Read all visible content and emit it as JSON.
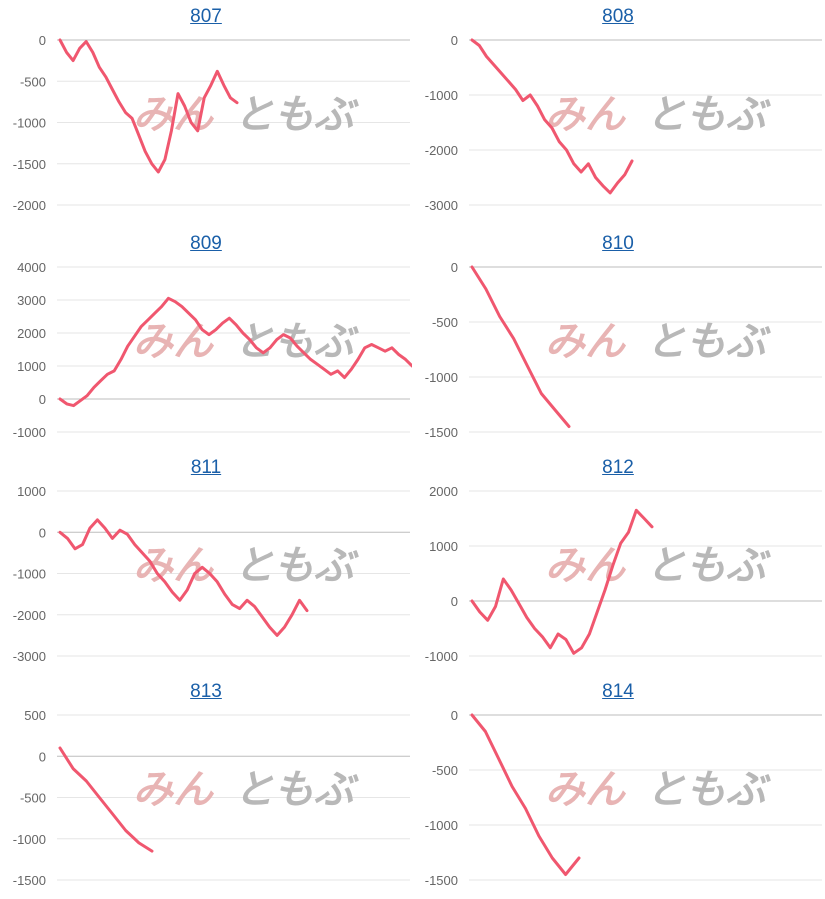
{
  "colors": {
    "line": "#f0576f",
    "grid": "#e6e6e6",
    "axis": "#bdbdbd",
    "link": "#1a5fa8",
    "watermark_red": "#e8b4b4",
    "watermark_gray": "#b8b8b8"
  },
  "watermark": {
    "part1": "みん",
    "part2": "ともぶ"
  },
  "chart_data": [
    {
      "type": "line",
      "title": "807",
      "ylim": [
        -2000,
        0
      ],
      "yticks": [
        0,
        -500,
        -1000,
        -1500,
        -2000
      ],
      "series": [
        {
          "values": [
            0,
            -150,
            -250,
            -100,
            -20,
            -150,
            -330,
            -450,
            -600,
            -750,
            -880,
            -950,
            -1150,
            -1350,
            -1500,
            -1600,
            -1450,
            -1100,
            -650,
            -800,
            -1000,
            -1100,
            -700,
            -550,
            -380,
            -550,
            -700,
            -760
          ]
        }
      ]
    },
    {
      "type": "line",
      "title": "808",
      "ylim": [
        -3000,
        0
      ],
      "yticks": [
        0,
        -1000,
        -2000,
        -3000
      ],
      "series": [
        {
          "values": [
            0,
            -100,
            -300,
            -450,
            -600,
            -750,
            -900,
            -1100,
            -1000,
            -1200,
            -1450,
            -1600,
            -1850,
            -2000,
            -2250,
            -2400,
            -2250,
            -2500,
            -2650,
            -2780,
            -2600,
            -2450,
            -2200
          ]
        }
      ]
    },
    {
      "type": "line",
      "title": "809",
      "ylim": [
        -1000,
        4000
      ],
      "yticks": [
        4000,
        3000,
        2000,
        1000,
        0,
        -1000
      ],
      "series": [
        {
          "values": [
            0,
            -150,
            -200,
            -50,
            100,
            350,
            550,
            750,
            850,
            1200,
            1600,
            1900,
            2200,
            2400,
            2600,
            2800,
            3050,
            2950,
            2800,
            2600,
            2400,
            2100,
            1950,
            2100,
            2300,
            2450,
            2250,
            2000,
            1800,
            1550,
            1400,
            1550,
            1800,
            1950,
            1850,
            1600,
            1400,
            1200,
            1050,
            900,
            750,
            850,
            650,
            900,
            1200,
            1550,
            1650,
            1550,
            1450,
            1550,
            1350,
            1200,
            1000,
            1150
          ]
        }
      ]
    },
    {
      "type": "line",
      "title": "810",
      "ylim": [
        -1500,
        0
      ],
      "yticks": [
        0,
        -500,
        -1000,
        -1500
      ],
      "series": [
        {
          "values": [
            0,
            -200,
            -450,
            -650,
            -900,
            -1150,
            -1300,
            -1450
          ]
        }
      ]
    },
    {
      "type": "line",
      "title": "811",
      "ylim": [
        -3000,
        1000
      ],
      "yticks": [
        1000,
        0,
        -1000,
        -2000,
        -3000
      ],
      "series": [
        {
          "values": [
            0,
            -150,
            -400,
            -300,
            100,
            300,
            100,
            -150,
            50,
            -50,
            -300,
            -500,
            -700,
            -1000,
            -1200,
            -1450,
            -1650,
            -1400,
            -1000,
            -850,
            -1000,
            -1200,
            -1500,
            -1750,
            -1850,
            -1650,
            -1800,
            -2050,
            -2300,
            -2500,
            -2300,
            -2000,
            -1650,
            -1900
          ]
        }
      ]
    },
    {
      "type": "line",
      "title": "812",
      "ylim": [
        -1000,
        2000
      ],
      "yticks": [
        2000,
        1000,
        0,
        -1000
      ],
      "series": [
        {
          "values": [
            0,
            -200,
            -350,
            -100,
            400,
            200,
            -50,
            -300,
            -500,
            -650,
            -850,
            -600,
            -700,
            -950,
            -850,
            -600,
            -200,
            200,
            650,
            1050,
            1250,
            1650,
            1500,
            1350
          ]
        }
      ]
    },
    {
      "type": "line",
      "title": "813",
      "ylim": [
        -1500,
        500
      ],
      "yticks": [
        500,
        0,
        -500,
        -1000,
        -1500
      ],
      "series": [
        {
          "values": [
            100,
            -150,
            -300,
            -500,
            -700,
            -900,
            -1050,
            -1150
          ]
        }
      ]
    },
    {
      "type": "line",
      "title": "814",
      "ylim": [
        -1500,
        0
      ],
      "yticks": [
        0,
        -500,
        -1000,
        -1500
      ],
      "series": [
        {
          "values": [
            0,
            -150,
            -400,
            -650,
            -850,
            -1100,
            -1300,
            -1450,
            -1300
          ]
        }
      ]
    }
  ]
}
